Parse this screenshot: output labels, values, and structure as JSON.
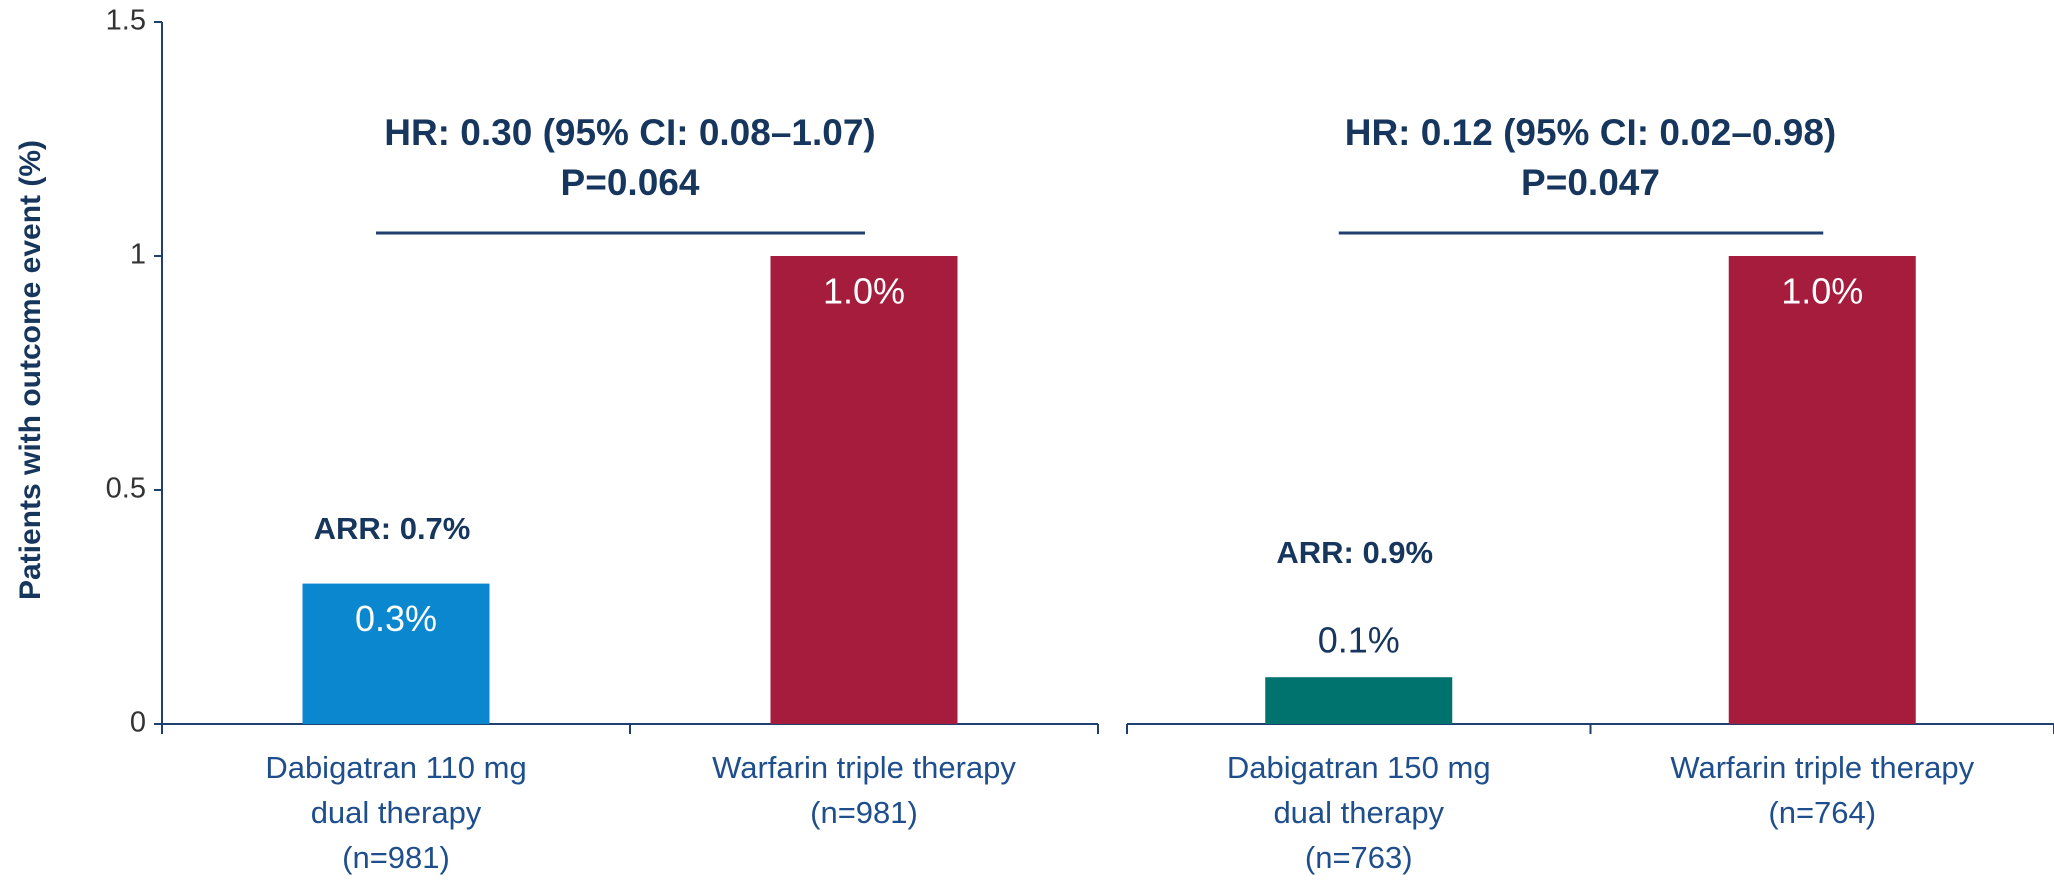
{
  "chart_data": {
    "type": "bar",
    "y_label": "Patients with outcome event (%)",
    "ylim": [
      0,
      1.5
    ],
    "yticks": [
      0,
      0.5,
      1,
      1.5
    ],
    "groups": [
      {
        "categories": [
          [
            "Dabigatran 110 mg",
            "dual therapy",
            "(n=981)"
          ],
          [
            "Warfarin triple therapy",
            "(n=981)"
          ]
        ],
        "values": [
          0.3,
          1.0
        ],
        "value_labels": [
          "0.3%",
          "1.0%"
        ],
        "colors": [
          "#0a87cf",
          "#a51c3c"
        ],
        "hr": [
          "HR: 0.30 (95% CI: 0.08–1.07)",
          "P=0.064"
        ],
        "arr": "ARR: 0.7%"
      },
      {
        "categories": [
          [
            "Dabigatran 150 mg",
            "dual therapy",
            "(n=763)"
          ],
          [
            "Warfarin triple therapy",
            "(n=764)"
          ]
        ],
        "values": [
          0.1,
          1.0
        ],
        "value_labels": [
          "0.1%",
          "1.0%"
        ],
        "colors": [
          "#00736e",
          "#a51c3c"
        ],
        "hr": [
          "HR: 0.12 (95% CI: 0.02–0.98)",
          "P=0.047"
        ],
        "arr": "ARR: 0.9%"
      }
    ]
  }
}
